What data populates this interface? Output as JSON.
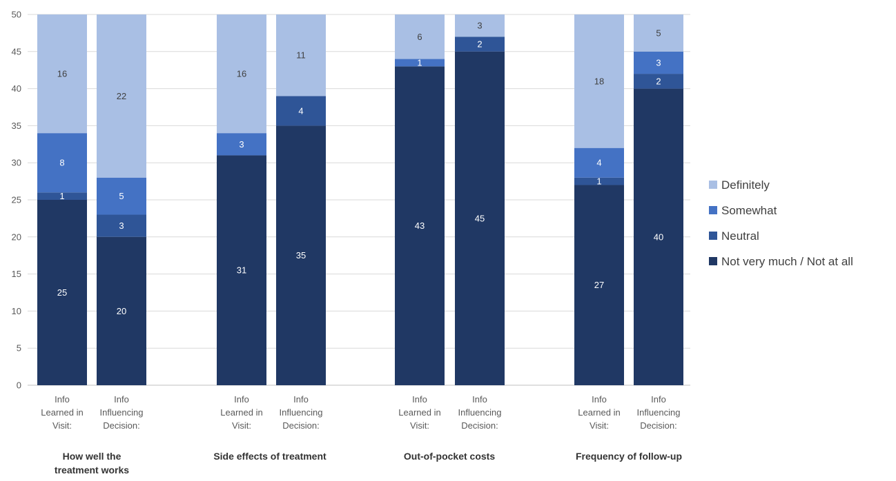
{
  "chart_data": {
    "type": "bar",
    "stacked": true,
    "ylim": [
      0,
      50
    ],
    "yticks": [
      0,
      5,
      10,
      15,
      20,
      25,
      30,
      35,
      40,
      45,
      50
    ],
    "grid": true,
    "legend_position": "right",
    "groups": [
      {
        "label": [
          "How well the",
          "treatment works"
        ],
        "bars": [
          {
            "label": [
              "Info",
              "Learned in",
              "Visit:"
            ],
            "values": [
              25,
              1,
              8,
              16
            ]
          },
          {
            "label": [
              "Info",
              "Influencing",
              "Decision:"
            ],
            "values": [
              20,
              3,
              5,
              22
            ]
          }
        ]
      },
      {
        "label": [
          "Side effects of treatment"
        ],
        "bars": [
          {
            "label": [
              "Info",
              "Learned in",
              "Visit:"
            ],
            "values": [
              31,
              0,
              3,
              16
            ]
          },
          {
            "label": [
              "Info",
              "Influencing",
              "Decision:"
            ],
            "values": [
              35,
              4,
              0,
              11
            ]
          }
        ]
      },
      {
        "label": [
          "Out-of-pocket costs"
        ],
        "bars": [
          {
            "label": [
              "Info",
              "Learned in",
              "Visit:"
            ],
            "values": [
              43,
              0,
              1,
              6
            ]
          },
          {
            "label": [
              "Info",
              "Influencing",
              "Decision:"
            ],
            "values": [
              45,
              2,
              0,
              3
            ]
          }
        ]
      },
      {
        "label": [
          "Frequency of follow-up"
        ],
        "bars": [
          {
            "label": [
              "Info",
              "Learned in",
              "Visit:"
            ],
            "values": [
              27,
              1,
              4,
              18
            ]
          },
          {
            "label": [
              "Info",
              "Influencing",
              "Decision:"
            ],
            "values": [
              40,
              2,
              3,
              5
            ]
          }
        ]
      }
    ],
    "series": [
      {
        "name": "Not very much / Not at all",
        "color": "#203864",
        "label_color": "#ffffff"
      },
      {
        "name": "Neutral",
        "color": "#2F5597",
        "label_color": "#ffffff"
      },
      {
        "name": "Somewhat",
        "color": "#4472C4",
        "label_color": "#ffffff"
      },
      {
        "name": "Definitely",
        "color": "#A9BFE4",
        "label_color": "#404040"
      }
    ],
    "legend_order": [
      "Definitely",
      "Somewhat",
      "Neutral",
      "Not very much / Not at all"
    ],
    "colors": {
      "grid": "#d9d9d9",
      "axis": "#bfbfbf"
    }
  }
}
